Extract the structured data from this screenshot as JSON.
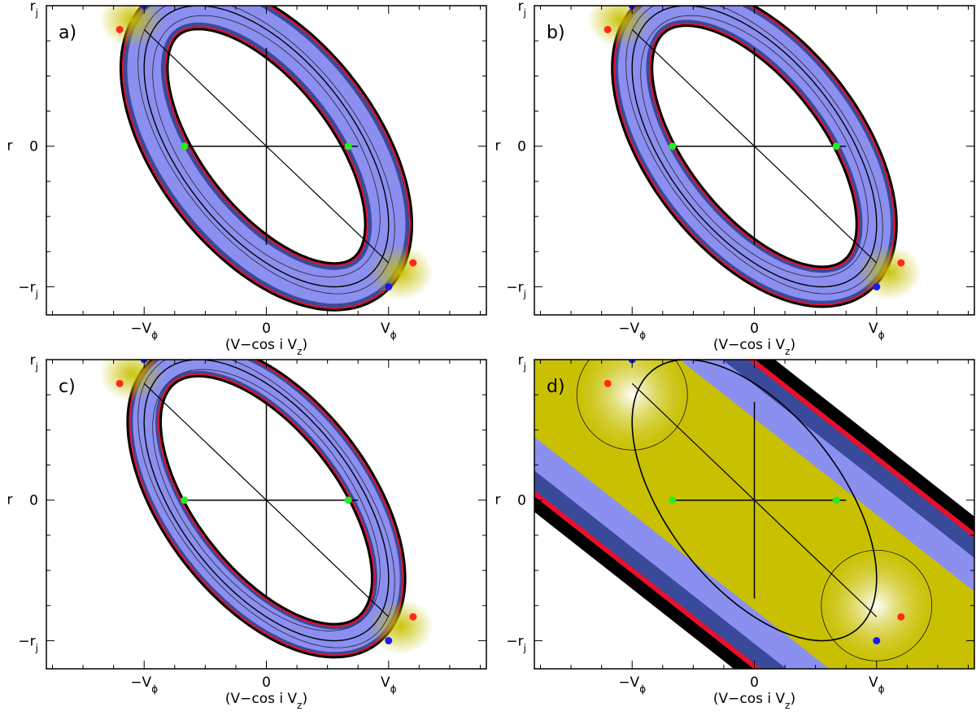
{
  "chart_data": [
    {
      "type": "heatmap",
      "panel_label": "a)",
      "xlabel": "(V−cos i V",
      "xlabel_sub": "z",
      "xlabel_close": ")",
      "ylabel": "r",
      "xticks": [
        {
          "v": -1,
          "text": "−V",
          "sub": "ϕ"
        },
        {
          "v": 0,
          "text": "0",
          "sub": ""
        },
        {
          "v": 1,
          "text": "V",
          "sub": "ϕ"
        }
      ],
      "yticks": [
        {
          "v": 1,
          "text": "r",
          "sub": "j"
        },
        {
          "v": 0,
          "text": "0",
          "sub": ""
        },
        {
          "v": -1,
          "text": "−r",
          "sub": "j"
        }
      ],
      "xlim": [
        -1.8,
        1.8
      ],
      "ylim": [
        -1.2,
        1.0
      ],
      "ring_width": 0.24,
      "outer_extent": 1.0,
      "points": {
        "blue": [
          [
            -1.0,
            1.0
          ],
          [
            1.0,
            -1.0
          ]
        ],
        "red": [
          [
            -1.2,
            0.83
          ],
          [
            1.2,
            -0.83
          ]
        ],
        "green": [
          [
            -0.67,
            0.0
          ],
          [
            0.67,
            0.0
          ]
        ]
      }
    },
    {
      "type": "heatmap",
      "panel_label": "b)",
      "xlabel": "(V−cos i V",
      "xlabel_sub": "z",
      "xlabel_close": ")",
      "ylabel": "r",
      "xticks": [
        {
          "v": -1,
          "text": "−V",
          "sub": "ϕ"
        },
        {
          "v": 0,
          "text": "0",
          "sub": ""
        },
        {
          "v": 1,
          "text": "V",
          "sub": "ϕ"
        }
      ],
      "yticks": [
        {
          "v": 1,
          "text": "r",
          "sub": "j"
        },
        {
          "v": 0,
          "text": "0",
          "sub": ""
        },
        {
          "v": -1,
          "text": "−r",
          "sub": "j"
        }
      ],
      "xlim": [
        -1.8,
        1.8
      ],
      "ylim": [
        -1.2,
        1.0
      ],
      "ring_width": 0.2,
      "outer_extent": 1.0,
      "points": {
        "blue": [
          [
            -1.0,
            1.0
          ],
          [
            1.0,
            -1.0
          ]
        ],
        "red": [
          [
            -1.2,
            0.83
          ],
          [
            1.2,
            -0.83
          ]
        ],
        "green": [
          [
            -0.67,
            0.0
          ],
          [
            0.67,
            0.0
          ]
        ]
      }
    },
    {
      "type": "heatmap",
      "panel_label": "c)",
      "xlabel": "(V−cos i V",
      "xlabel_sub": "z",
      "xlabel_close": ")",
      "ylabel": "r",
      "xticks": [
        {
          "v": -1,
          "text": "−V",
          "sub": "ϕ"
        },
        {
          "v": 0,
          "text": "0",
          "sub": ""
        },
        {
          "v": 1,
          "text": "V",
          "sub": "ϕ"
        }
      ],
      "yticks": [
        {
          "v": 1,
          "text": "r",
          "sub": "j"
        },
        {
          "v": 0,
          "text": "0",
          "sub": ""
        },
        {
          "v": -1,
          "text": "−r",
          "sub": "j"
        }
      ],
      "xlim": [
        -1.8,
        1.8
      ],
      "ylim": [
        -1.2,
        1.0
      ],
      "ring_width": 0.16,
      "outer_extent": 1.0,
      "points": {
        "blue": [
          [
            -1.0,
            1.0
          ],
          [
            1.0,
            -1.0
          ]
        ],
        "red": [
          [
            -1.2,
            0.83
          ],
          [
            1.2,
            -0.83
          ]
        ],
        "green": [
          [
            -0.67,
            0.0
          ],
          [
            0.67,
            0.0
          ]
        ]
      }
    },
    {
      "type": "heatmap",
      "panel_label": "d)",
      "xlabel": "(V−cos i V",
      "xlabel_sub": "z",
      "xlabel_close": ")",
      "ylabel": "r",
      "xticks": [
        {
          "v": -1,
          "text": "−V",
          "sub": "ϕ"
        },
        {
          "v": 0,
          "text": "0",
          "sub": ""
        },
        {
          "v": 1,
          "text": "V",
          "sub": "ϕ"
        }
      ],
      "yticks": [
        {
          "v": 1,
          "text": "r",
          "sub": "j"
        },
        {
          "v": 0,
          "text": "0",
          "sub": ""
        },
        {
          "v": -1,
          "text": "−r",
          "sub": "j"
        }
      ],
      "xlim": [
        -1.8,
        1.8
      ],
      "ylim": [
        -1.2,
        1.0
      ],
      "ring_width": 1.0,
      "outer_extent": 1.0,
      "points": {
        "blue": [
          [
            -1.0,
            1.0
          ],
          [
            1.0,
            -1.0
          ]
        ],
        "red": [
          [
            -1.2,
            0.83
          ],
          [
            1.2,
            -0.83
          ]
        ],
        "green": [
          [
            -0.67,
            0.0
          ],
          [
            0.67,
            0.0
          ]
        ]
      }
    }
  ],
  "colors": {
    "blue_point": "#1a1aff",
    "red_point": "#ff2a1a",
    "green_point": "#22ee22",
    "ring_outer_red": "#e8102a",
    "ring_blue": "#8b8ff0",
    "ring_dark_blue": "#3a4a9a",
    "ring_yellow": "#c8c000",
    "hot_white": "#ffffff",
    "outside_black": "#000000"
  }
}
